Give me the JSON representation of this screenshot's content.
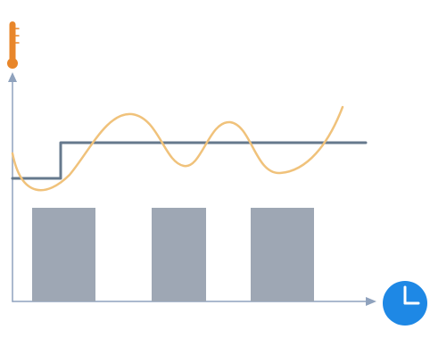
{
  "diagram": {
    "icons": {
      "y_axis": "thermometer-icon",
      "x_axis": "clock-icon"
    },
    "colors": {
      "axis": "#8fa2bd",
      "setpoint_line": "#66798d",
      "temperature_wave": "#f0c27b",
      "heating_pulse": "#9ea7b4",
      "thermometer": "#e8862a",
      "clock": "#1e88e5"
    },
    "heating_pulses_count": 3
  }
}
